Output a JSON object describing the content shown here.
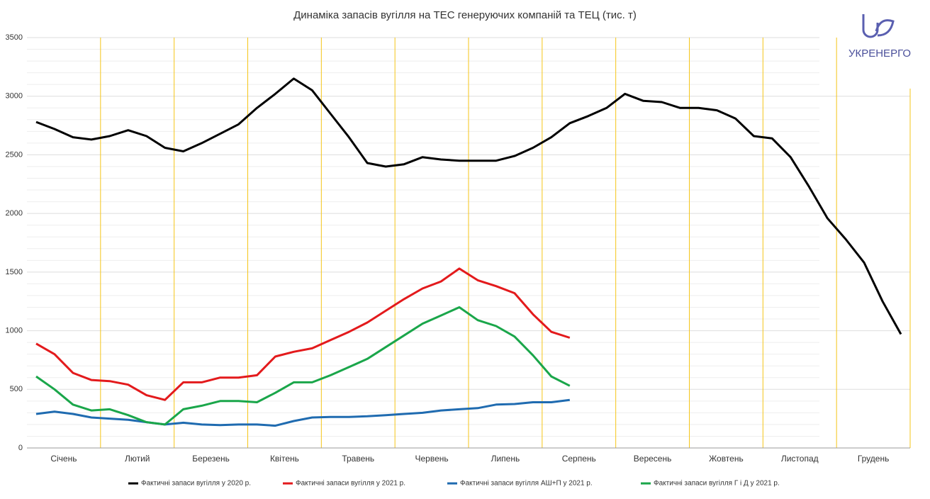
{
  "chart_data": {
    "type": "line",
    "title": "Динаміка запасів вугілля на ТЕС генеруючих компаній та ТЕЦ (тис. т)",
    "categories": [
      "Січень",
      null,
      null,
      null,
      "Лютий",
      null,
      null,
      null,
      "Березень",
      null,
      null,
      null,
      "Квітень",
      null,
      null,
      null,
      "Травень",
      null,
      null,
      null,
      "Червень",
      null,
      null,
      null,
      "Липень",
      null,
      null,
      null,
      "Серпень",
      null,
      null,
      null,
      "Вересень",
      null,
      null,
      null,
      "Жовтень",
      null,
      null,
      null,
      "Листопад",
      null,
      null,
      null,
      "Грудень",
      null,
      null,
      null
    ],
    "series": [
      {
        "name": "Фактичні запаси вугілля у 2020 р.",
        "color": "#000000",
        "values": [
          2780,
          2720,
          2650,
          2630,
          2660,
          2710,
          2660,
          2560,
          2530,
          2600,
          2680,
          2760,
          2900,
          3020,
          3150,
          3050,
          2850,
          2650,
          2430,
          2400,
          2420,
          2480,
          2460,
          2450,
          2450,
          2450,
          2490,
          2560,
          2650,
          2770,
          2830,
          2900,
          3020,
          2960,
          2950,
          2900,
          2900,
          2880,
          2810,
          2660,
          2640,
          2480,
          2230,
          1960,
          1780,
          1580,
          1250,
          970
        ]
      },
      {
        "name": "Фактичні запаси вугілля у 2021 р.",
        "color": "#e31a1c",
        "values": [
          890,
          800,
          640,
          580,
          570,
          540,
          450,
          410,
          560,
          560,
          600,
          600,
          620,
          780,
          820,
          850,
          920,
          990,
          1070,
          1170,
          1270,
          1360,
          1420,
          1530,
          1430,
          1380,
          1320,
          1140,
          990,
          940,
          null,
          null,
          null,
          null,
          null,
          null,
          null,
          null,
          null,
          null,
          null,
          null,
          null,
          null,
          null,
          null,
          null,
          null
        ]
      },
      {
        "name": "Фактичні запаси вугілля АШ+П у 2021 р.",
        "color": "#1f6bb0",
        "values": [
          290,
          310,
          290,
          260,
          250,
          240,
          220,
          200,
          215,
          200,
          195,
          200,
          200,
          190,
          230,
          260,
          265,
          265,
          270,
          280,
          290,
          300,
          320,
          330,
          340,
          370,
          375,
          390,
          390,
          410,
          null,
          null,
          null,
          null,
          null,
          null,
          null,
          null,
          null,
          null,
          null,
          null,
          null,
          null,
          null,
          null,
          null,
          null
        ]
      },
      {
        "name": "Фактичні запаси вугілля Г і Д у 2021 р.",
        "color": "#1aa64a",
        "values": [
          610,
          500,
          370,
          320,
          330,
          280,
          220,
          200,
          330,
          360,
          400,
          400,
          390,
          470,
          560,
          560,
          620,
          690,
          760,
          860,
          960,
          1060,
          1130,
          1200,
          1090,
          1040,
          950,
          790,
          610,
          530,
          null,
          null,
          null,
          null,
          null,
          null,
          null,
          null,
          null,
          null,
          null,
          null,
          null,
          null,
          null,
          null,
          null,
          null
        ]
      }
    ],
    "ylim": [
      0,
      3500
    ],
    "yticks": [
      0,
      500,
      1000,
      1500,
      2000,
      2500,
      3000,
      3500
    ],
    "grid": true
  },
  "logo": "УКРЕНЕРГО"
}
